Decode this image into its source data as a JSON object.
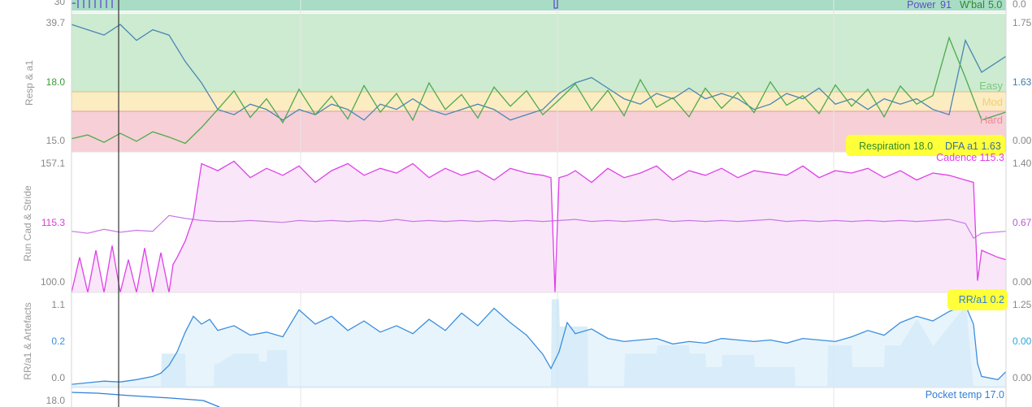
{
  "chart_data": [
    {
      "type": "line",
      "panel": "power",
      "series": [
        {
          "name": "Power",
          "current": "91"
        },
        {
          "name": "W'bal",
          "current": "5.0"
        }
      ],
      "ylabel": "",
      "yticks_left": [
        "30"
      ],
      "yticks_right": [
        "0.0"
      ],
      "legend": "top-right",
      "colors": {
        "power": "#5a50c8",
        "wbal": "#2f8a2f",
        "fill": "#a8dcc4"
      }
    },
    {
      "type": "line",
      "panel": "respiration",
      "ylabel": "Resp & a1",
      "yticks_left": [
        "39.7",
        "18.0",
        "15.0"
      ],
      "yticks_right": [
        "1.75",
        "1.63",
        "0.00"
      ],
      "zones": [
        "Easy",
        "Hard"
      ],
      "zone_label_partial": "Mod",
      "legend_text": [
        "Respiration 18.0",
        "DFA a1 1.63"
      ],
      "series": [
        {
          "name": "Respiration",
          "current": 18.0,
          "color": "#4daa4d",
          "x": [
            0,
            20,
            40,
            60,
            80,
            100,
            120,
            140,
            160,
            180,
            200,
            220,
            240,
            260,
            280,
            300,
            320,
            340,
            360,
            380,
            400,
            420,
            440,
            460,
            480,
            500,
            520,
            540,
            560,
            580,
            600,
            620,
            640,
            660,
            680,
            700,
            720,
            740,
            760,
            780,
            800,
            820,
            840,
            860,
            880,
            900,
            920,
            940,
            960,
            980,
            1000,
            1020,
            1040,
            1060,
            1080,
            1100,
            1120,
            1150
          ],
          "y": [
            16.5,
            17.2,
            15.8,
            17.5,
            16.0,
            17.8,
            16.8,
            15.6,
            18.6,
            22.0,
            25.5,
            20.5,
            24.0,
            19.5,
            25.8,
            21.0,
            24.5,
            20.2,
            26.5,
            21.5,
            25.0,
            20.0,
            27.0,
            22.0,
            24.8,
            20.4,
            26.2,
            22.6,
            25.5,
            21.0,
            23.8,
            26.8,
            21.8,
            25.6,
            20.8,
            27.6,
            22.4,
            24.2,
            20.6,
            26.0,
            22.2,
            25.2,
            21.4,
            27.2,
            22.8,
            24.6,
            21.2,
            26.6,
            22.6,
            25.8,
            20.6,
            26.4,
            23.0,
            24.6,
            35.5,
            28.0,
            20.0,
            21.5
          ]
        },
        {
          "name": "DFA a1",
          "current": 1.63,
          "color": "#4a86b4",
          "x": [
            0,
            20,
            40,
            60,
            80,
            100,
            120,
            140,
            160,
            180,
            200,
            220,
            240,
            260,
            280,
            300,
            320,
            340,
            360,
            380,
            400,
            420,
            440,
            460,
            480,
            500,
            520,
            540,
            560,
            580,
            600,
            620,
            640,
            660,
            680,
            700,
            720,
            740,
            760,
            780,
            800,
            820,
            840,
            860,
            880,
            900,
            920,
            940,
            960,
            980,
            1000,
            1020,
            1040,
            1060,
            1080,
            1100,
            1120,
            1150
          ],
          "y": [
            1.74,
            1.73,
            1.72,
            1.74,
            1.71,
            1.73,
            1.72,
            1.67,
            1.63,
            1.58,
            1.57,
            1.59,
            1.58,
            1.56,
            1.58,
            1.57,
            1.59,
            1.58,
            1.56,
            1.59,
            1.58,
            1.6,
            1.58,
            1.57,
            1.58,
            1.59,
            1.58,
            1.56,
            1.57,
            1.58,
            1.61,
            1.63,
            1.64,
            1.62,
            1.6,
            1.59,
            1.61,
            1.6,
            1.62,
            1.6,
            1.61,
            1.6,
            1.58,
            1.59,
            1.61,
            1.6,
            1.62,
            1.59,
            1.6,
            1.58,
            1.6,
            1.59,
            1.6,
            1.58,
            1.57,
            1.71,
            1.65,
            1.68
          ]
        }
      ],
      "legend": "bottom-right"
    },
    {
      "type": "area",
      "panel": "cadence",
      "ylabel": "Run Cad & Stride",
      "yticks_left": [
        "157.1",
        "115.3",
        "100.0"
      ],
      "yticks_right": [
        "1.40",
        "0.67",
        "0.00"
      ],
      "legend_text": [
        "Cadence 115.3"
      ],
      "series": [
        {
          "name": "Cadence",
          "current": 115.3,
          "color": "#e040e8",
          "x": [
            0,
            10,
            20,
            30,
            40,
            50,
            60,
            70,
            80,
            90,
            100,
            110,
            120,
            125,
            130,
            140,
            150,
            160,
            180,
            200,
            220,
            240,
            260,
            280,
            300,
            320,
            340,
            360,
            380,
            400,
            420,
            440,
            460,
            480,
            500,
            520,
            540,
            560,
            580,
            590,
            595,
            600,
            610,
            620,
            640,
            660,
            680,
            700,
            720,
            740,
            760,
            780,
            800,
            820,
            840,
            860,
            880,
            900,
            920,
            940,
            960,
            980,
            1000,
            1020,
            1040,
            1060,
            1080,
            1100,
            1110,
            1115,
            1120,
            1140,
            1150
          ],
          "y": [
            100,
            115,
            100,
            118,
            100,
            120,
            100,
            114,
            100,
            119,
            100,
            117,
            100,
            112,
            115,
            122,
            132,
            155,
            152,
            156,
            149,
            153,
            150,
            154,
            147,
            152,
            155,
            150,
            153,
            151,
            155,
            149,
            153,
            150,
            152,
            148,
            153,
            151,
            150,
            149,
            100,
            149,
            150,
            152,
            147,
            153,
            149,
            151,
            154,
            148,
            152,
            150,
            153,
            149,
            152,
            151,
            150,
            154,
            149,
            152,
            151,
            153,
            149,
            152,
            148,
            151,
            150,
            148,
            147,
            105,
            118,
            115,
            114
          ]
        },
        {
          "name": "Stride",
          "current": 0.67,
          "color": "#c878e8",
          "x": [
            0,
            20,
            40,
            60,
            80,
            100,
            110,
            120,
            140,
            160,
            180,
            200,
            220,
            240,
            260,
            280,
            300,
            320,
            340,
            360,
            380,
            400,
            420,
            440,
            460,
            480,
            500,
            520,
            540,
            560,
            580,
            600,
            620,
            640,
            660,
            680,
            700,
            720,
            740,
            760,
            780,
            800,
            820,
            840,
            860,
            880,
            900,
            920,
            940,
            960,
            980,
            1000,
            1020,
            1040,
            1060,
            1080,
            1100,
            1110,
            1120,
            1150
          ],
          "y": [
            0.62,
            0.6,
            0.64,
            0.61,
            0.63,
            0.62,
            0.7,
            0.78,
            0.75,
            0.73,
            0.72,
            0.72,
            0.73,
            0.72,
            0.71,
            0.73,
            0.72,
            0.73,
            0.72,
            0.73,
            0.72,
            0.74,
            0.72,
            0.73,
            0.72,
            0.73,
            0.72,
            0.73,
            0.72,
            0.73,
            0.72,
            0.73,
            0.74,
            0.72,
            0.73,
            0.72,
            0.73,
            0.74,
            0.72,
            0.73,
            0.72,
            0.73,
            0.72,
            0.73,
            0.74,
            0.72,
            0.73,
            0.72,
            0.73,
            0.72,
            0.73,
            0.72,
            0.73,
            0.72,
            0.73,
            0.74,
            0.7,
            0.55,
            0.6,
            0.62
          ]
        }
      ],
      "legend": "top-right"
    },
    {
      "type": "area",
      "panel": "rr",
      "ylabel": "RR/a1 & Artefacts",
      "yticks_left": [
        "1.1",
        "0.2",
        "0.0"
      ],
      "yticks_right": [
        "1.25",
        "0.00",
        "0.00"
      ],
      "legend_text": [
        "RR/a1 0.2"
      ],
      "series": [
        {
          "name": "RR/a1",
          "current": 0.2,
          "color": "#3a8ee0",
          "x": [
            0,
            20,
            40,
            60,
            80,
            100,
            110,
            120,
            130,
            140,
            150,
            160,
            170,
            180,
            200,
            220,
            240,
            260,
            280,
            300,
            320,
            340,
            360,
            380,
            400,
            420,
            440,
            460,
            480,
            500,
            520,
            540,
            560,
            580,
            590,
            600,
            610,
            620,
            640,
            660,
            680,
            700,
            720,
            740,
            760,
            780,
            800,
            820,
            840,
            860,
            880,
            900,
            920,
            940,
            960,
            980,
            1000,
            1020,
            1040,
            1060,
            1080,
            1100,
            1110,
            1115,
            1120,
            1140,
            1150
          ],
          "y": [
            0.04,
            0.06,
            0.08,
            0.07,
            0.1,
            0.14,
            0.18,
            0.28,
            0.45,
            0.7,
            0.9,
            0.8,
            0.86,
            0.72,
            0.78,
            0.66,
            0.7,
            0.64,
            0.98,
            0.8,
            0.9,
            0.72,
            0.84,
            0.7,
            0.78,
            0.68,
            0.86,
            0.72,
            0.94,
            0.78,
            1.0,
            0.82,
            0.66,
            0.42,
            0.24,
            0.45,
            0.82,
            0.68,
            0.74,
            0.62,
            0.58,
            0.6,
            0.62,
            0.55,
            0.58,
            0.56,
            0.62,
            0.6,
            0.58,
            0.6,
            0.56,
            0.62,
            0.6,
            0.58,
            0.64,
            0.72,
            0.66,
            0.82,
            0.9,
            0.84,
            0.96,
            1.04,
            0.8,
            0.3,
            0.14,
            0.1,
            0.2
          ]
        },
        {
          "name": "Artefacts",
          "color": "#b8def2",
          "x": [
            0,
            110,
            111,
            140,
            141,
            175,
            176,
            180,
            200,
            230,
            231,
            240,
            241,
            265,
            266,
            520,
            580,
            590,
            591,
            600,
            601,
            635,
            636,
            680,
            681,
            720,
            721,
            760,
            761,
            780,
            781,
            800,
            801,
            840,
            841,
            890,
            891,
            930,
            931,
            960,
            961,
            1000,
            1001,
            1020,
            1040,
            1041,
            1060,
            1061,
            1100,
            1101,
            1110,
            1150
          ],
          "y": [
            0.02,
            0.02,
            0.5,
            0.5,
            0.02,
            0.02,
            0.35,
            0.35,
            0.5,
            0.5,
            0.38,
            0.38,
            0.55,
            0.55,
            0.02,
            0.02,
            0.02,
            0.02,
            1.3,
            1.3,
            0.9,
            0.9,
            0.02,
            0.02,
            0.5,
            0.5,
            0.62,
            0.62,
            0.5,
            0.5,
            0.3,
            0.3,
            0.48,
            0.48,
            0.3,
            0.3,
            0.02,
            0.02,
            0.62,
            0.62,
            0.3,
            0.3,
            0.62,
            0.62,
            1.0,
            1.0,
            0.62,
            0.62,
            1.2,
            1.2,
            0.02,
            0.02
          ]
        }
      ],
      "legend": "top-right"
    },
    {
      "type": "line",
      "panel": "pocket-temp",
      "yticks_left": [
        "18.0"
      ],
      "legend_text": [
        "Pocket temp 17.0"
      ],
      "series": [
        {
          "name": "Pocket temp",
          "current": 17.0,
          "color": "#2f7fd8"
        }
      ],
      "legend": "top-right"
    }
  ],
  "highlight_color": "#ffff3a"
}
